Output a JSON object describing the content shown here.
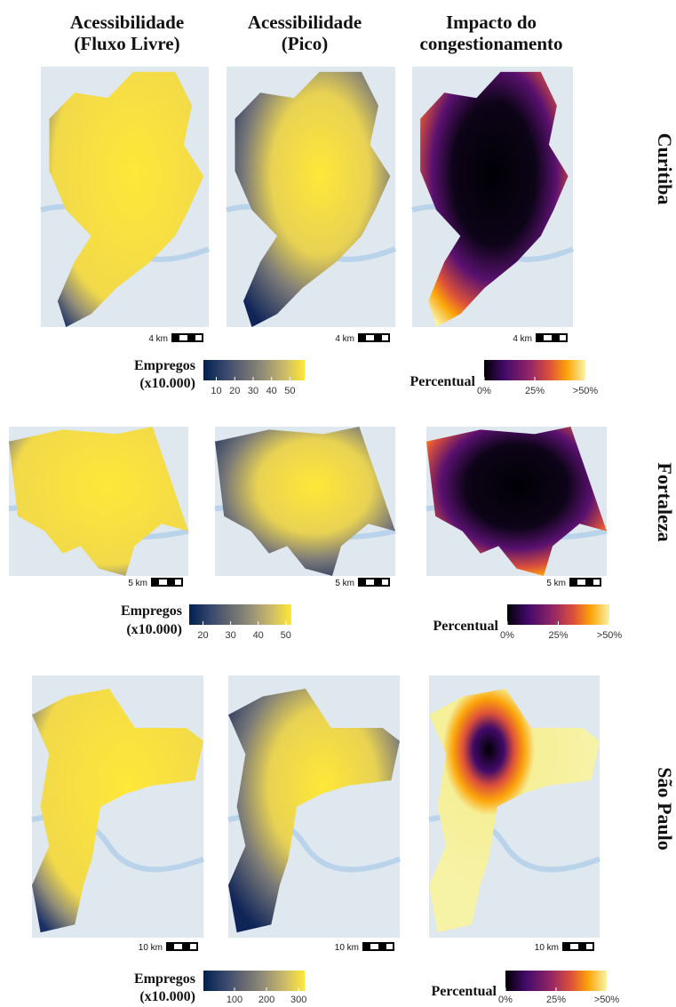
{
  "column_headers": [
    [
      "Acessibilidade",
      "(Fluxo Livre)"
    ],
    [
      "Acessibilidade",
      "(Pico)"
    ],
    [
      "Impacto do",
      "congestionamento"
    ]
  ],
  "rows": [
    {
      "city": "Curitiba",
      "scale_labels": [
        "4 km",
        "4 km",
        "4 km"
      ],
      "access_legend": {
        "title": [
          "Empregos",
          "(x10.000)"
        ],
        "range": [
          3,
          58
        ],
        "ticks": [
          10,
          20,
          30,
          40,
          50
        ]
      },
      "impact_legend": {
        "title": "Percentual",
        "range": [
          0,
          50
        ],
        "ticks": [
          {
            "value": 0,
            "label": "0%"
          },
          {
            "value": 25,
            "label": "25%"
          },
          {
            "value": 50,
            "label": ">50%"
          }
        ]
      }
    },
    {
      "city": "Fortaleza",
      "scale_labels": [
        "5 km",
        "5 km",
        "5 km"
      ],
      "access_legend": {
        "title": [
          "Empregos",
          "(x10.000)"
        ],
        "range": [
          15,
          52
        ],
        "ticks": [
          20,
          30,
          40,
          50
        ]
      },
      "impact_legend": {
        "title": "Percentual",
        "range": [
          0,
          50
        ],
        "ticks": [
          {
            "value": 0,
            "label": "0%"
          },
          {
            "value": 25,
            "label": "25%"
          },
          {
            "value": 50,
            "label": ">50%"
          }
        ]
      }
    },
    {
      "city": "São Paulo",
      "scale_labels": [
        "10 km",
        "10 km",
        "10 km"
      ],
      "access_legend": {
        "title": [
          "Empregos",
          "(x10.000)"
        ],
        "range": [
          3,
          319
        ],
        "ticks": [
          100,
          200,
          300
        ]
      },
      "impact_legend": {
        "title": "Percentual",
        "range": [
          0,
          50
        ],
        "ticks": [
          {
            "value": 0,
            "label": "0%"
          },
          {
            "value": 25,
            "label": "25%"
          },
          {
            "value": 50,
            "label": ">50%"
          }
        ]
      }
    }
  ]
}
